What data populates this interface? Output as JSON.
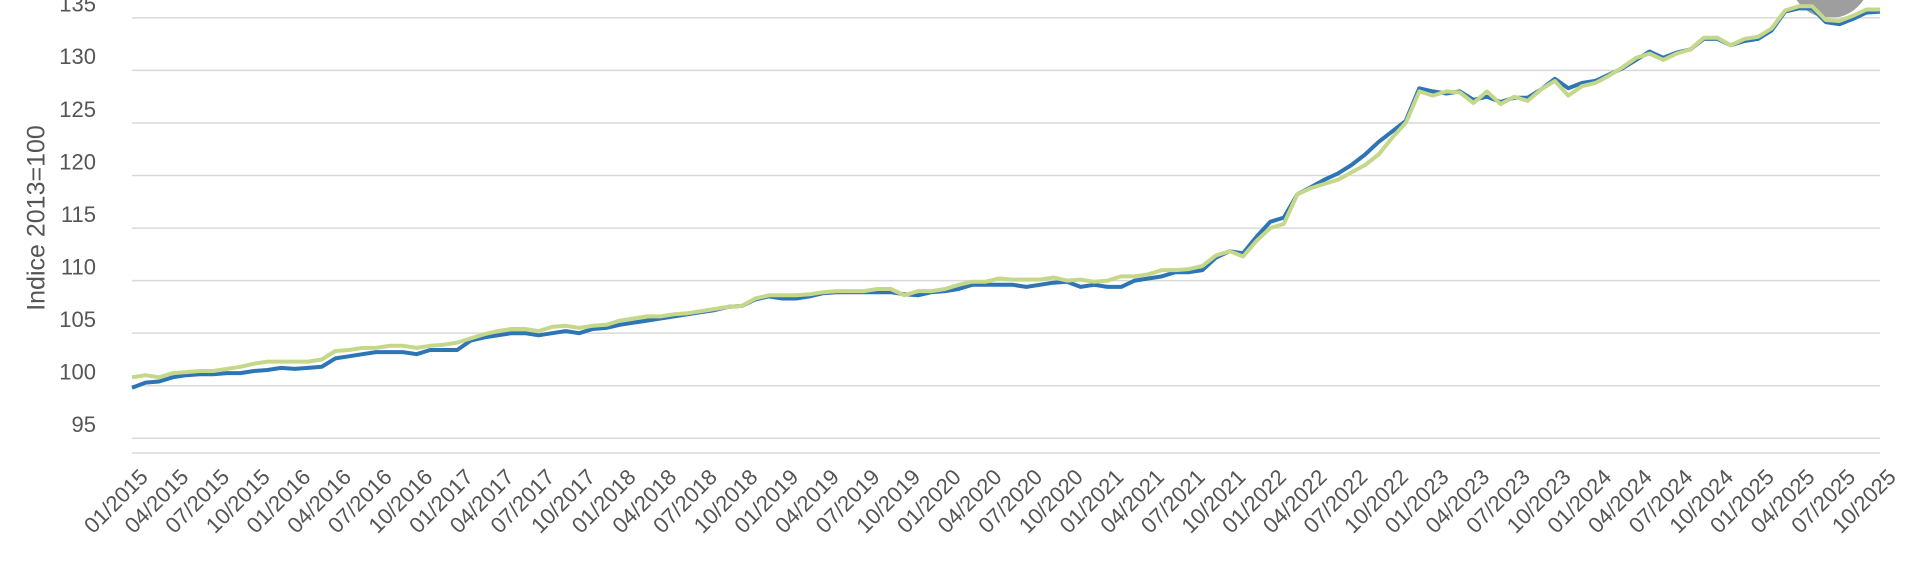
{
  "chart_data": {
    "type": "line",
    "y_label": "Indice 2013=100",
    "categories": [
      "01/2015",
      null,
      null,
      "04/2015",
      null,
      null,
      "07/2015",
      null,
      null,
      "10/2015",
      null,
      null,
      "01/2016",
      null,
      null,
      "04/2016",
      null,
      null,
      "07/2016",
      null,
      null,
      "10/2016",
      null,
      null,
      "01/2017",
      null,
      null,
      "04/2017",
      null,
      null,
      "07/2017",
      null,
      null,
      "10/2017",
      null,
      null,
      "01/2018",
      null,
      null,
      "04/2018",
      null,
      null,
      "07/2018",
      null,
      null,
      "10/2018",
      null,
      null,
      "01/2019",
      null,
      null,
      "04/2019",
      null,
      null,
      "07/2019",
      null,
      null,
      "10/2019",
      null,
      null,
      "01/2020",
      null,
      null,
      "04/2020",
      null,
      null,
      "07/2020",
      null,
      null,
      "10/2020",
      null,
      null,
      "01/2021",
      null,
      null,
      "04/2021",
      null,
      null,
      "07/2021",
      null,
      null,
      "10/2021",
      null,
      null,
      "01/2022",
      null,
      null,
      "04/2022",
      null,
      null,
      "07/2022",
      null,
      null,
      "10/2022",
      null,
      null,
      "01/2023",
      null,
      null,
      "04/2023",
      null,
      null,
      "07/2023",
      null,
      null,
      "10/2023",
      null,
      null,
      "01/2024",
      null,
      null,
      "04/2024",
      null,
      null,
      "07/2024",
      null,
      null,
      "10/2024",
      null,
      null,
      "01/2025",
      null,
      null,
      "04/2025",
      null,
      null,
      "07/2025",
      null,
      null,
      "10/2025"
    ],
    "series": [
      {
        "color": "#2e75b6",
        "values": [
          99.8,
          100.3,
          100.4,
          100.8,
          101.0,
          101.1,
          101.1,
          101.2,
          101.2,
          101.4,
          101.5,
          101.7,
          101.6,
          101.7,
          101.8,
          102.6,
          102.8,
          103.0,
          103.2,
          103.2,
          103.2,
          103.0,
          103.4,
          103.4,
          103.4,
          104.3,
          104.6,
          104.8,
          105.0,
          105.0,
          104.8,
          105.0,
          105.2,
          105.0,
          105.4,
          105.5,
          105.8,
          106.0,
          106.2,
          106.4,
          106.6,
          106.8,
          107.0,
          107.2,
          107.5,
          107.6,
          108.2,
          108.5,
          108.3,
          108.3,
          108.5,
          108.8,
          108.9,
          108.9,
          108.9,
          108.9,
          108.9,
          108.7,
          108.6,
          108.9,
          109.0,
          109.2,
          109.6,
          109.6,
          109.6,
          109.6,
          109.4,
          109.6,
          109.8,
          109.9,
          109.4,
          109.6,
          109.4,
          109.4,
          110.0,
          110.2,
          110.4,
          110.8,
          110.8,
          111.0,
          112.2,
          112.8,
          112.6,
          114.2,
          115.6,
          116.0,
          118.2,
          118.9,
          119.6,
          120.2,
          121.0,
          122.0,
          123.2,
          124.2,
          125.2,
          128.3,
          128.0,
          127.8,
          128.0,
          127.2,
          127.5,
          127.0,
          127.4,
          127.4,
          128.2,
          129.2,
          128.3,
          128.8,
          129.0,
          129.6,
          130.2,
          131.0,
          131.8,
          131.2,
          131.7,
          132.0,
          133.0,
          133.0,
          132.4,
          132.8,
          133.0,
          133.8,
          135.6,
          135.9,
          135.9,
          134.6,
          134.4,
          134.9,
          135.5,
          135.6
        ]
      },
      {
        "color": "#c5d88a",
        "values": [
          100.8,
          101.0,
          100.8,
          101.2,
          101.3,
          101.4,
          101.4,
          101.6,
          101.8,
          102.1,
          102.3,
          102.3,
          102.3,
          102.3,
          102.5,
          103.3,
          103.4,
          103.6,
          103.6,
          103.8,
          103.8,
          103.6,
          103.8,
          103.9,
          104.1,
          104.5,
          104.9,
          105.2,
          105.4,
          105.4,
          105.2,
          105.6,
          105.7,
          105.5,
          105.7,
          105.8,
          106.2,
          106.4,
          106.6,
          106.6,
          106.8,
          106.9,
          107.1,
          107.3,
          107.5,
          107.6,
          108.3,
          108.6,
          108.6,
          108.6,
          108.7,
          108.9,
          109.0,
          109.0,
          109.0,
          109.2,
          109.2,
          108.6,
          109.0,
          109.0,
          109.2,
          109.6,
          109.9,
          109.9,
          110.2,
          110.1,
          110.1,
          110.1,
          110.3,
          110.0,
          110.1,
          109.9,
          110.0,
          110.4,
          110.4,
          110.6,
          111.0,
          111.0,
          111.1,
          111.4,
          112.4,
          112.8,
          112.3,
          113.8,
          115.0,
          115.4,
          118.2,
          118.8,
          119.2,
          119.6,
          120.3,
          121.0,
          122.0,
          123.6,
          125.0,
          128.0,
          127.6,
          128.0,
          127.9,
          126.9,
          128.0,
          126.8,
          127.5,
          127.1,
          128.2,
          129.0,
          127.6,
          128.5,
          128.8,
          129.5,
          130.3,
          131.2,
          131.6,
          131.0,
          131.6,
          132.0,
          133.1,
          133.1,
          132.4,
          133.0,
          133.2,
          134.0,
          135.7,
          136.1,
          136.1,
          134.8,
          134.7,
          135.2,
          135.8,
          135.8
        ]
      }
    ],
    "ylim": [
      93.6,
      136.7
    ],
    "yticks": [
      95,
      100,
      105,
      110,
      115,
      120,
      125,
      130,
      135
    ],
    "grid": true
  }
}
